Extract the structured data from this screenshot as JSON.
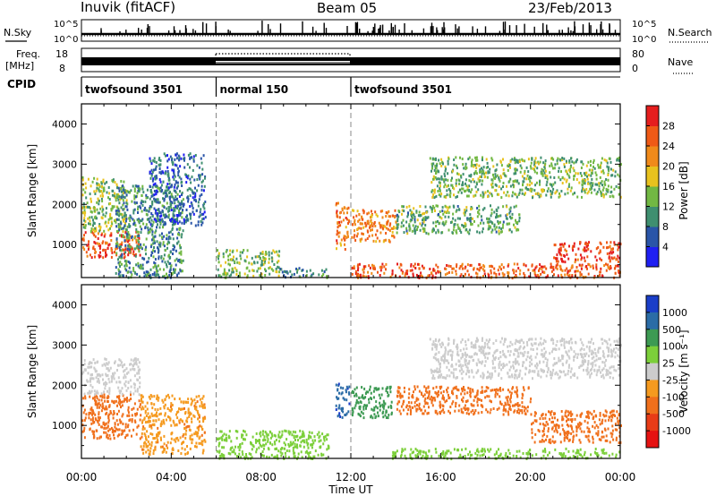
{
  "header": {
    "station": "Inuvik (fitACF)",
    "beam": "Beam 05",
    "date": "23/Feb/2013"
  },
  "strip_labels": {
    "nsky": "N.Sky",
    "nsearch": "N.Search",
    "freq_line1": "Freq.",
    "freq_line2": "[MHz]",
    "nave": "Nave",
    "cpid": "CPID"
  },
  "strip_ticks": {
    "noise_top": "10^5",
    "noise_bottom": "10^0",
    "freq_top": "18",
    "freq_bottom": "8",
    "nave_top": "80",
    "nave_bottom": "0"
  },
  "cpid_segments": [
    {
      "label": "twofsound 3501",
      "start_h": 0,
      "end_h": 6
    },
    {
      "label": "normal 150",
      "start_h": 6,
      "end_h": 12
    },
    {
      "label": "twofsound 3501",
      "start_h": 12,
      "end_h": 24
    }
  ],
  "colorbars": {
    "power": {
      "title": "Power [dB]",
      "ticks": [
        "4",
        "8",
        "12",
        "16",
        "20",
        "24",
        "28"
      ],
      "colors": [
        "#1f1ff2",
        "#2a55a8",
        "#3f8f70",
        "#72b843",
        "#e8c21e",
        "#f08a1a",
        "#ef5a16",
        "#e51e1e"
      ]
    },
    "velocity": {
      "title": "Velocity [m s⁻¹]",
      "ticks": [
        "1000",
        "500",
        "100",
        "25",
        "-25",
        "-100",
        "-500",
        "-1000"
      ],
      "colors": [
        "#1a3ec8",
        "#2b6ca6",
        "#3d9a53",
        "#7ccf3a",
        "#cccccc",
        "#f59a1f",
        "#f0701c",
        "#e83c17",
        "#e51212"
      ]
    }
  },
  "chart_data": [
    {
      "type": "heatmap",
      "title": "Power",
      "ylabel": "Slant Range [km]",
      "xlabel": "Time UT",
      "x_ticks": [
        "00:00",
        "04:00",
        "08:00",
        "12:00",
        "16:00",
        "20:00",
        "00:00"
      ],
      "x_range_hours": [
        0,
        24
      ],
      "y_ticks": [
        1000,
        2000,
        3000,
        4000
      ],
      "ylim": [
        180,
        4500
      ],
      "units": "dB",
      "scatter_regions": [
        {
          "t_start": 0.0,
          "t_end": 2.6,
          "r_low": 700,
          "r_high": 1350,
          "value": 27
        },
        {
          "t_start": 0.0,
          "t_end": 2.0,
          "r_low": 1350,
          "r_high": 2700,
          "value": 15
        },
        {
          "t_start": 1.5,
          "t_end": 4.5,
          "r_low": 200,
          "r_high": 2500,
          "value": 10
        },
        {
          "t_start": 3.0,
          "t_end": 5.5,
          "r_low": 1500,
          "r_high": 3300,
          "value": 7
        },
        {
          "t_start": 6.0,
          "t_end": 8.8,
          "r_low": 200,
          "r_high": 900,
          "value": 14
        },
        {
          "t_start": 8.8,
          "t_end": 11.0,
          "r_low": 200,
          "r_high": 450,
          "value": 9
        },
        {
          "t_start": 11.3,
          "t_end": 11.9,
          "r_low": 900,
          "r_high": 2100,
          "value": 24
        },
        {
          "t_start": 12.0,
          "t_end": 14.0,
          "r_low": 1100,
          "r_high": 1900,
          "value": 23
        },
        {
          "t_start": 12.0,
          "t_end": 24.0,
          "r_low": 200,
          "r_high": 550,
          "value": 26
        },
        {
          "t_start": 14.0,
          "t_end": 19.5,
          "r_low": 1300,
          "r_high": 2000,
          "value": 12
        },
        {
          "t_start": 15.5,
          "t_end": 24.0,
          "r_low": 2200,
          "r_high": 3200,
          "value": 13
        },
        {
          "t_start": 21.0,
          "t_end": 24.0,
          "r_low": 600,
          "r_high": 1100,
          "value": 28
        }
      ]
    },
    {
      "type": "heatmap",
      "title": "Velocity",
      "ylabel": "Slant Range [km]",
      "xlabel": "Time UT",
      "x_ticks": [
        "00:00",
        "04:00",
        "08:00",
        "12:00",
        "16:00",
        "20:00",
        "00:00"
      ],
      "x_range_hours": [
        0,
        24
      ],
      "y_ticks": [
        1000,
        2000,
        3000,
        4000
      ],
      "ylim": [
        180,
        4500
      ],
      "units": "m s^-1",
      "scatter_regions": [
        {
          "t_start": 0.0,
          "t_end": 2.6,
          "r_low": 700,
          "r_high": 1800,
          "value": -150
        },
        {
          "t_start": 0.0,
          "t_end": 2.6,
          "r_low": 1800,
          "r_high": 2700,
          "value": 0
        },
        {
          "t_start": 2.6,
          "t_end": 5.5,
          "r_low": 300,
          "r_high": 1800,
          "value": -80
        },
        {
          "t_start": 6.0,
          "t_end": 11.0,
          "r_low": 200,
          "r_high": 900,
          "value": 60
        },
        {
          "t_start": 11.3,
          "t_end": 11.9,
          "r_low": 1200,
          "r_high": 2100,
          "value": 800
        },
        {
          "t_start": 12.0,
          "t_end": 13.8,
          "r_low": 1200,
          "r_high": 2000,
          "value": 300
        },
        {
          "t_start": 13.8,
          "t_end": 24.0,
          "r_low": 200,
          "r_high": 450,
          "value": 40
        },
        {
          "t_start": 14.0,
          "t_end": 20.0,
          "r_low": 1300,
          "r_high": 2000,
          "value": -150
        },
        {
          "t_start": 15.5,
          "t_end": 24.0,
          "r_low": 2200,
          "r_high": 3200,
          "value": 0
        },
        {
          "t_start": 20.0,
          "t_end": 24.0,
          "r_low": 600,
          "r_high": 1400,
          "value": -200
        }
      ]
    }
  ]
}
